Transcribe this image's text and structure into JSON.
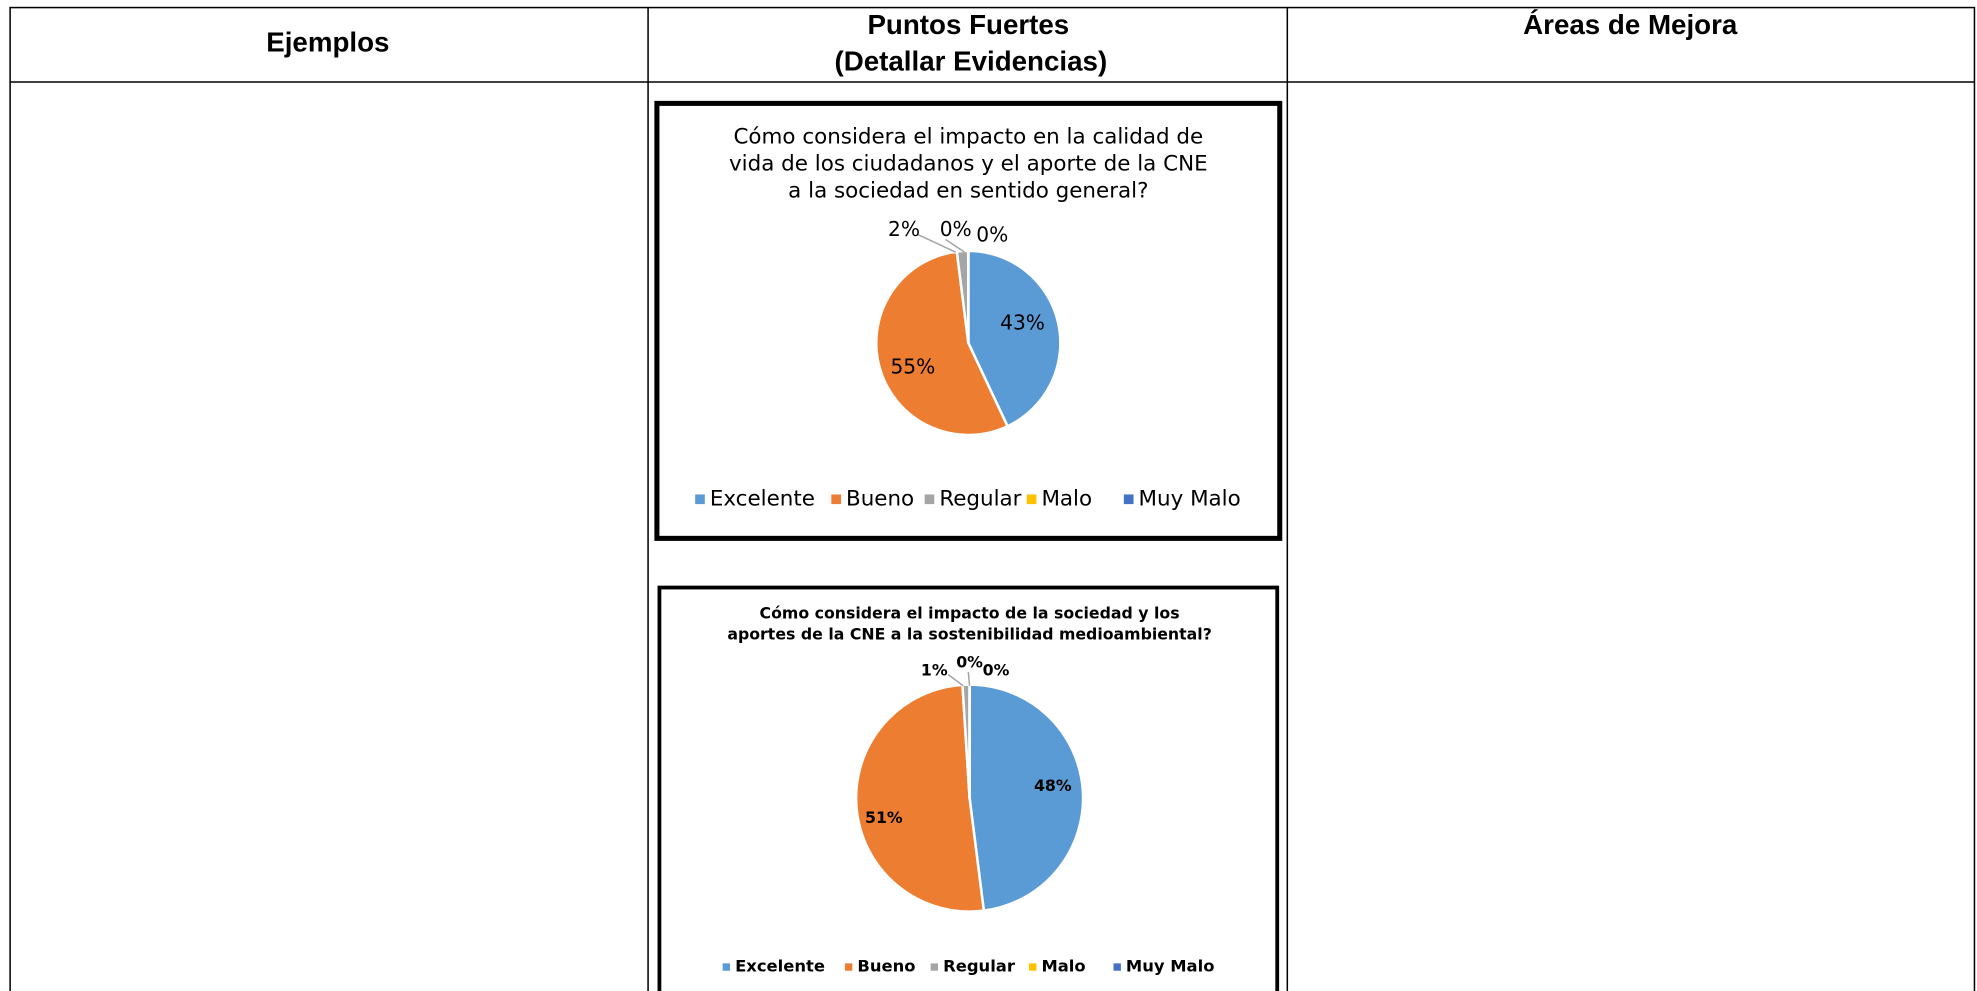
{
  "table": {
    "headers": [
      "Ejemplos",
      [
        "Puntos Fuertes",
        "(Detallar Evidencias)"
      ],
      "Áreas de Mejora"
    ]
  },
  "chart_data": [
    {
      "type": "pie",
      "title": [
        "Cómo considera el impacto en la calidad de",
        "vida de los ciudadanos y el aporte de la CNE",
        "a la sociedad en sentido general?"
      ],
      "categories": [
        "Excelente",
        "Bueno",
        "Regular",
        "Malo",
        "Muy Malo"
      ],
      "values": [
        43,
        55,
        2,
        0,
        0
      ],
      "value_labels": [
        "43%",
        "55%",
        "2%",
        "0%",
        "0%"
      ],
      "colors": [
        "#5b9bd5",
        "#ed7d31",
        "#a5a5a5",
        "#ffc000",
        "#4472c4"
      ],
      "legend": "bottom"
    },
    {
      "type": "pie",
      "title": [
        "Cómo considera el impacto de la sociedad y los",
        "aportes de la CNE a la sostenibilidad medioambiental?"
      ],
      "categories": [
        "Excelente",
        "Bueno",
        "Regular",
        "Malo",
        "Muy Malo"
      ],
      "values": [
        48,
        51,
        1,
        0,
        0
      ],
      "value_labels": [
        "48%",
        "51%",
        "1%",
        "0%",
        "0%"
      ],
      "colors": [
        "#5b9bd5",
        "#ed7d31",
        "#a5a5a5",
        "#ffc000",
        "#4472c4"
      ],
      "legend": "bottom"
    }
  ]
}
